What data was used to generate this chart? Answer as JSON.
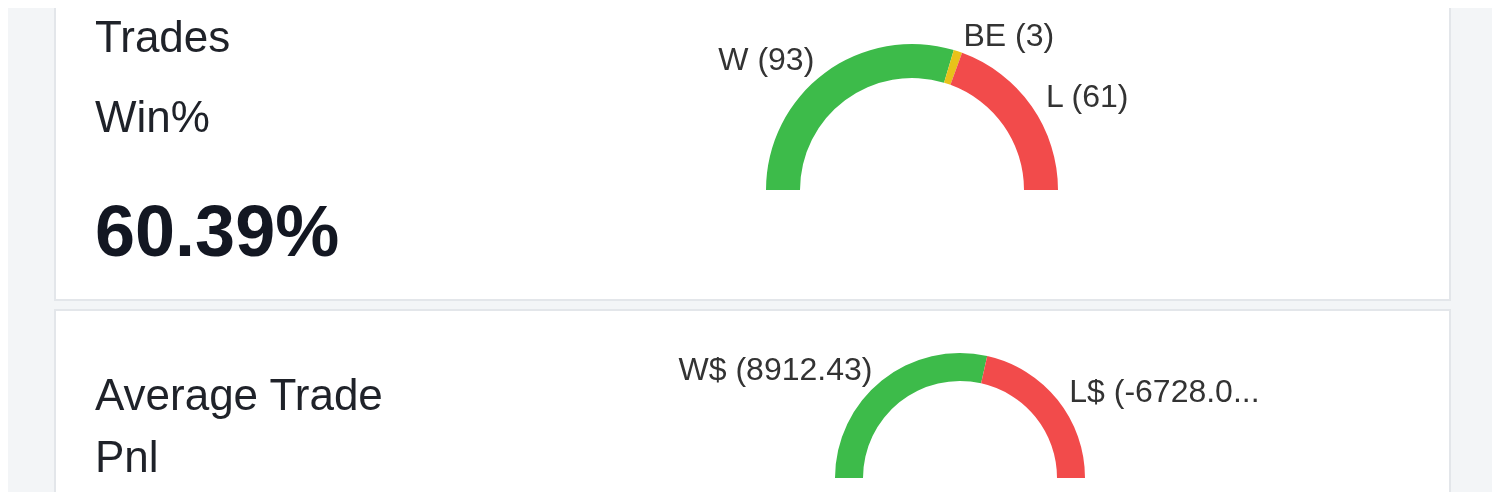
{
  "chart_data": [
    {
      "type": "donut",
      "title": "Trades Win%",
      "categories": [
        "W (93)",
        "BE (3)",
        "L (61)"
      ],
      "values": [
        93,
        3,
        61
      ],
      "colors": [
        "#3dbb4a",
        "#e8c21a",
        "#f24b4b"
      ],
      "annotations": [
        "60.39%"
      ]
    },
    {
      "type": "donut",
      "title": "Average Trade Pnl",
      "categories": [
        "W$ (8912.43)",
        "L$ (-6728.0..."
      ],
      "values": [
        8912.43,
        6728.0
      ],
      "colors": [
        "#3dbb4a",
        "#f24b4b"
      ]
    }
  ]
}
